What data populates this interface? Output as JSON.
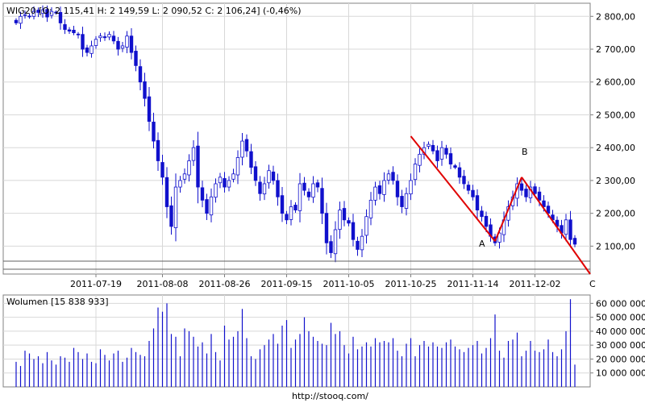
{
  "chart_data": [
    {
      "type": "candlestick",
      "title": "WIG20 [O: 2 115,41  H: 2 149,59  L: 2 090,52  C: 2 106,24] (-0,46%)",
      "ylim": [
        2015,
        2840
      ],
      "yticks": [
        {
          "v": 2100,
          "label": "2 100,00"
        },
        {
          "v": 2200,
          "label": "2 200,00"
        },
        {
          "v": 2300,
          "label": "2 300,00"
        },
        {
          "v": 2400,
          "label": "2 400,00"
        },
        {
          "v": 2500,
          "label": "2 500,00"
        },
        {
          "v": 2600,
          "label": "2 600,00"
        },
        {
          "v": 2700,
          "label": "2 700,00"
        },
        {
          "v": 2800,
          "label": "2 800,00"
        }
      ],
      "xticks": [
        {
          "i": 18,
          "label": "2011-07-19"
        },
        {
          "i": 33,
          "label": "2011-08-08"
        },
        {
          "i": 47,
          "label": "2011-08-26"
        },
        {
          "i": 61,
          "label": "2011-09-15"
        },
        {
          "i": 75,
          "label": "2011-10-05"
        },
        {
          "i": 89,
          "label": "2011-10-25"
        },
        {
          "i": 103,
          "label": "2011-11-14"
        },
        {
          "i": 117,
          "label": "2011-12-02"
        }
      ],
      "close": [
        2780,
        2800,
        2805,
        2800,
        2815,
        2812,
        2820,
        2798,
        2815,
        2810,
        2780,
        2760,
        2755,
        2750,
        2745,
        2700,
        2690,
        2710,
        2730,
        2740,
        2735,
        2745,
        2725,
        2700,
        2710,
        2740,
        2690,
        2650,
        2600,
        2550,
        2480,
        2420,
        2360,
        2310,
        2220,
        2160,
        2280,
        2300,
        2320,
        2360,
        2400,
        2280,
        2240,
        2200,
        2250,
        2290,
        2310,
        2280,
        2300,
        2320,
        2370,
        2420,
        2390,
        2340,
        2300,
        2260,
        2290,
        2330,
        2300,
        2250,
        2200,
        2180,
        2220,
        2210,
        2290,
        2270,
        2250,
        2290,
        2280,
        2200,
        2110,
        2080,
        2150,
        2210,
        2180,
        2170,
        2120,
        2090,
        2130,
        2190,
        2240,
        2280,
        2260,
        2300,
        2320,
        2300,
        2250,
        2220,
        2260,
        2300,
        2350,
        2380,
        2400,
        2410,
        2390,
        2360,
        2400,
        2380,
        2350,
        2340,
        2310,
        2290,
        2270,
        2250,
        2210,
        2190,
        2160,
        2130,
        2110,
        2140,
        2180,
        2220,
        2250,
        2290,
        2270,
        2250,
        2280,
        2260,
        2240,
        2220,
        2200,
        2180,
        2160,
        2140,
        2180,
        2120,
        2106
      ],
      "volume_title": "Wolumen [15 838 933]",
      "volume_ylim": [
        0,
        66000000
      ],
      "volume_ticks": [
        {
          "v": 10000000,
          "label": "10 000 000"
        },
        {
          "v": 20000000,
          "label": "20 000 000"
        },
        {
          "v": 30000000,
          "label": "30 000 000"
        },
        {
          "v": 40000000,
          "label": "40 000 000"
        },
        {
          "v": 50000000,
          "label": "50 000 000"
        },
        {
          "v": 60000000,
          "label": "60 000 000"
        }
      ],
      "volume": [
        18,
        15,
        26,
        24,
        20,
        22,
        17,
        25,
        19,
        16,
        22,
        21,
        18,
        28,
        25,
        20,
        24,
        18,
        17,
        27,
        23,
        19,
        24,
        26,
        18,
        21,
        28,
        25,
        23,
        22,
        33,
        42,
        57,
        54,
        60,
        38,
        36,
        22,
        42,
        40,
        36,
        29,
        32,
        24,
        38,
        25,
        19,
        44,
        34,
        36,
        40,
        56,
        35,
        22,
        20,
        27,
        30,
        34,
        38,
        31,
        44,
        48,
        28,
        34,
        38,
        50,
        40,
        36,
        33,
        31,
        30,
        46,
        38,
        40,
        30,
        24,
        36,
        27,
        29,
        32,
        29,
        35,
        32,
        33,
        32,
        35,
        26,
        22,
        31,
        35,
        22,
        30,
        33,
        29,
        32,
        29,
        28,
        32,
        34,
        29,
        27,
        25,
        28,
        30,
        33,
        24,
        28,
        35,
        52,
        26,
        21,
        33,
        34,
        39,
        22,
        26,
        33,
        26,
        25,
        27,
        34,
        25,
        22,
        27,
        40,
        63,
        16
      ]
    }
  ],
  "annotations": {
    "label_a": "A",
    "label_b": "B",
    "label_c": "C",
    "trend_color": "#e00000",
    "up_color": "#ffffff",
    "down_color": "#1010cc",
    "grid_color": "#d8d8d8"
  },
  "footer": {
    "source": "http://stooq.com/"
  }
}
